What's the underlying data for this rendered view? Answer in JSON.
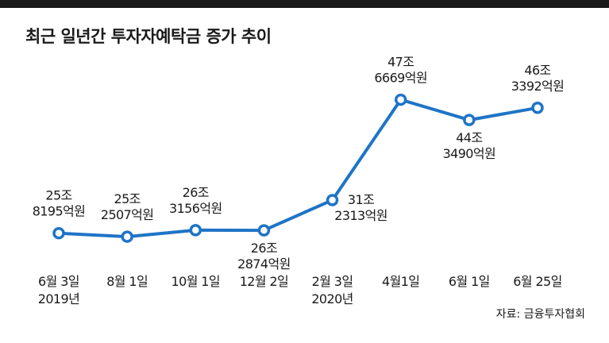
{
  "chart_data": {
    "type": "line",
    "title": "최근 일년간 투자자예탁금 증가 추이",
    "source": "자료: 금융투자협회",
    "series_color": "#1f74c6",
    "categories": [
      [
        "6월 3일",
        "2019년"
      ],
      [
        "8월 1일"
      ],
      [
        "10월 1일"
      ],
      [
        "12월 2일"
      ],
      [
        "2월 3일",
        "2020년"
      ],
      [
        "4월1일"
      ],
      [
        "6월 1일"
      ],
      [
        "6월 25일"
      ]
    ],
    "values": [
      258195,
      252507,
      263156,
      262874,
      312313,
      476669,
      443490,
      463392
    ],
    "value_labels": [
      [
        "25조",
        "8195억원"
      ],
      [
        "25조",
        "2507억원"
      ],
      [
        "26조",
        "3156억원"
      ],
      [
        "26조",
        "2874억원"
      ],
      [
        "31조",
        "2313억원"
      ],
      [
        "47조",
        "6669억원"
      ],
      [
        "44조",
        "3490억원"
      ],
      [
        "46조",
        "3392억원"
      ]
    ],
    "value_unit": "억원",
    "grid": false,
    "yaxis_visible": false
  }
}
